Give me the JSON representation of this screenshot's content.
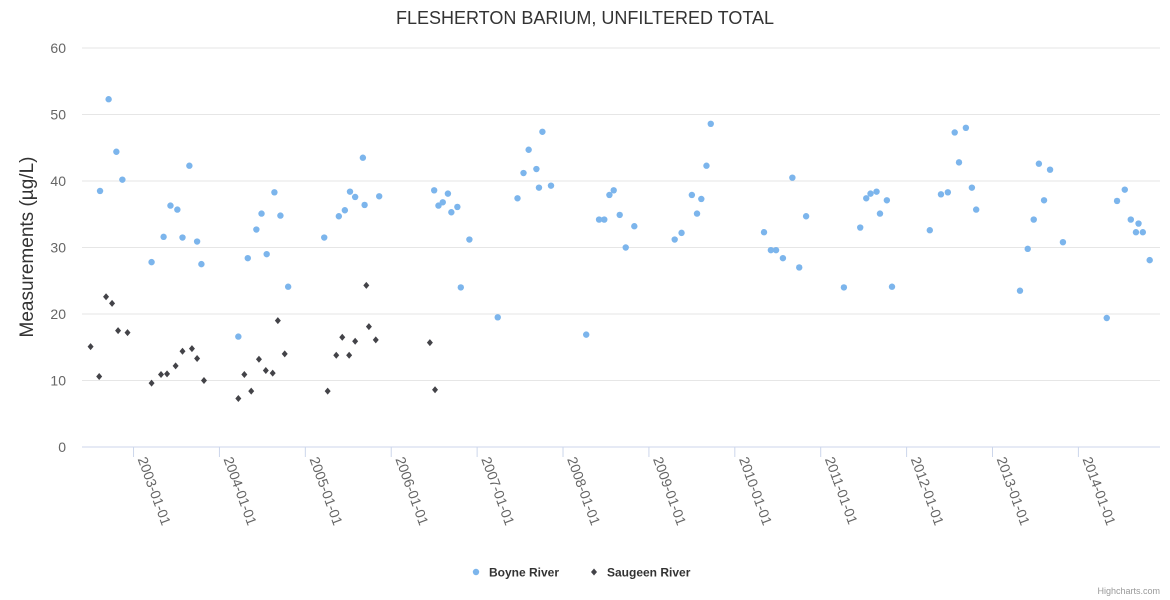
{
  "chart_data": {
    "type": "scatter",
    "title": "FLESHERTON BARIUM, UNFILTERED TOTAL",
    "xlabel": "",
    "ylabel": "Measurements (µg/L)",
    "ylim": [
      0,
      60
    ],
    "yticks": [
      "0",
      "10",
      "20",
      "30",
      "40",
      "50",
      "60"
    ],
    "xlim": [
      2002.4,
      2014.95
    ],
    "xticks": [
      {
        "label": "2003-01-01",
        "value": 2003
      },
      {
        "label": "2004-01-01",
        "value": 2004
      },
      {
        "label": "2005-01-01",
        "value": 2005
      },
      {
        "label": "2006-01-01",
        "value": 2006
      },
      {
        "label": "2007-01-01",
        "value": 2007
      },
      {
        "label": "2008-01-01",
        "value": 2008
      },
      {
        "label": "2009-01-01",
        "value": 2009
      },
      {
        "label": "2010-01-01",
        "value": 2010
      },
      {
        "label": "2011-01-01",
        "value": 2011
      },
      {
        "label": "2012-01-01",
        "value": 2012
      },
      {
        "label": "2013-01-01",
        "value": 2013
      },
      {
        "label": "2014-01-01",
        "value": 2014
      }
    ],
    "grid": true,
    "legend_position": "bottom-center",
    "series": [
      {
        "name": "Boyne River",
        "color": "#7cb5ec",
        "marker": "circle",
        "points": [
          [
            2002.61,
            38.5
          ],
          [
            2002.71,
            52.3
          ],
          [
            2002.8,
            44.4
          ],
          [
            2002.87,
            40.2
          ],
          [
            2003.21,
            27.8
          ],
          [
            2003.35,
            31.6
          ],
          [
            2003.43,
            36.3
          ],
          [
            2003.51,
            35.7
          ],
          [
            2003.57,
            31.5
          ],
          [
            2003.65,
            42.3
          ],
          [
            2003.74,
            30.9
          ],
          [
            2003.79,
            27.5
          ],
          [
            2004.22,
            16.6
          ],
          [
            2004.33,
            28.4
          ],
          [
            2004.43,
            32.7
          ],
          [
            2004.49,
            35.1
          ],
          [
            2004.55,
            29.0
          ],
          [
            2004.64,
            38.3
          ],
          [
            2004.71,
            34.8
          ],
          [
            2004.8,
            24.1
          ],
          [
            2005.22,
            31.5
          ],
          [
            2005.39,
            34.7
          ],
          [
            2005.46,
            35.6
          ],
          [
            2005.52,
            38.4
          ],
          [
            2005.58,
            37.6
          ],
          [
            2005.67,
            43.5
          ],
          [
            2005.69,
            36.4
          ],
          [
            2005.86,
            37.7
          ],
          [
            2006.5,
            38.6
          ],
          [
            2006.55,
            36.3
          ],
          [
            2006.6,
            36.8
          ],
          [
            2006.66,
            38.1
          ],
          [
            2006.7,
            35.3
          ],
          [
            2006.77,
            36.1
          ],
          [
            2006.81,
            24.0
          ],
          [
            2006.91,
            31.2
          ],
          [
            2007.24,
            19.5
          ],
          [
            2007.47,
            37.4
          ],
          [
            2007.54,
            41.2
          ],
          [
            2007.6,
            44.7
          ],
          [
            2007.69,
            41.8
          ],
          [
            2007.72,
            39.0
          ],
          [
            2007.76,
            47.4
          ],
          [
            2007.86,
            39.3
          ],
          [
            2008.27,
            16.9
          ],
          [
            2008.42,
            34.2
          ],
          [
            2008.48,
            34.2
          ],
          [
            2008.54,
            37.9
          ],
          [
            2008.59,
            38.6
          ],
          [
            2008.66,
            34.9
          ],
          [
            2008.73,
            30.0
          ],
          [
            2008.83,
            33.2
          ],
          [
            2009.3,
            31.2
          ],
          [
            2009.38,
            32.2
          ],
          [
            2009.5,
            37.9
          ],
          [
            2009.56,
            35.1
          ],
          [
            2009.61,
            37.3
          ],
          [
            2009.67,
            42.3
          ],
          [
            2009.72,
            48.6
          ],
          [
            2010.34,
            32.3
          ],
          [
            2010.42,
            29.6
          ],
          [
            2010.48,
            29.6
          ],
          [
            2010.56,
            28.4
          ],
          [
            2010.67,
            40.5
          ],
          [
            2010.75,
            27.0
          ],
          [
            2010.83,
            34.7
          ],
          [
            2011.27,
            24.0
          ],
          [
            2011.46,
            33.0
          ],
          [
            2011.53,
            37.4
          ],
          [
            2011.58,
            38.1
          ],
          [
            2011.65,
            38.4
          ],
          [
            2011.69,
            35.1
          ],
          [
            2011.77,
            37.1
          ],
          [
            2011.83,
            24.1
          ],
          [
            2012.27,
            32.6
          ],
          [
            2012.4,
            38.0
          ],
          [
            2012.48,
            38.3
          ],
          [
            2012.56,
            47.3
          ],
          [
            2012.61,
            42.8
          ],
          [
            2012.69,
            48.0
          ],
          [
            2012.76,
            39.0
          ],
          [
            2012.81,
            35.7
          ],
          [
            2013.32,
            23.5
          ],
          [
            2013.41,
            29.8
          ],
          [
            2013.48,
            34.2
          ],
          [
            2013.54,
            42.6
          ],
          [
            2013.6,
            37.1
          ],
          [
            2013.67,
            41.7
          ],
          [
            2013.82,
            30.8
          ],
          [
            2014.33,
            19.4
          ],
          [
            2014.45,
            37.0
          ],
          [
            2014.54,
            38.7
          ],
          [
            2014.61,
            34.2
          ],
          [
            2014.67,
            32.3
          ],
          [
            2014.7,
            33.6
          ],
          [
            2014.75,
            32.3
          ],
          [
            2014.83,
            28.1
          ]
        ]
      },
      {
        "name": "Saugeen River",
        "color": "#434348",
        "marker": "diamond",
        "points": [
          [
            2002.5,
            15.1
          ],
          [
            2002.6,
            10.6
          ],
          [
            2002.68,
            22.6
          ],
          [
            2002.75,
            21.6
          ],
          [
            2002.82,
            17.5
          ],
          [
            2002.93,
            17.2
          ],
          [
            2003.21,
            9.6
          ],
          [
            2003.32,
            10.9
          ],
          [
            2003.39,
            11.0
          ],
          [
            2003.49,
            12.2
          ],
          [
            2003.57,
            14.4
          ],
          [
            2003.68,
            14.8
          ],
          [
            2003.74,
            13.3
          ],
          [
            2003.82,
            10.0
          ],
          [
            2004.22,
            7.3
          ],
          [
            2004.29,
            10.9
          ],
          [
            2004.37,
            8.4
          ],
          [
            2004.46,
            13.2
          ],
          [
            2004.54,
            11.5
          ],
          [
            2004.62,
            11.1
          ],
          [
            2004.68,
            19.0
          ],
          [
            2004.76,
            14.0
          ],
          [
            2005.26,
            8.4
          ],
          [
            2005.36,
            13.8
          ],
          [
            2005.43,
            16.5
          ],
          [
            2005.51,
            13.8
          ],
          [
            2005.58,
            15.9
          ],
          [
            2005.71,
            24.3
          ],
          [
            2005.74,
            18.1
          ],
          [
            2005.82,
            16.1
          ],
          [
            2006.45,
            15.7
          ],
          [
            2006.51,
            8.6
          ]
        ]
      }
    ],
    "credits": "Highcharts.com"
  }
}
